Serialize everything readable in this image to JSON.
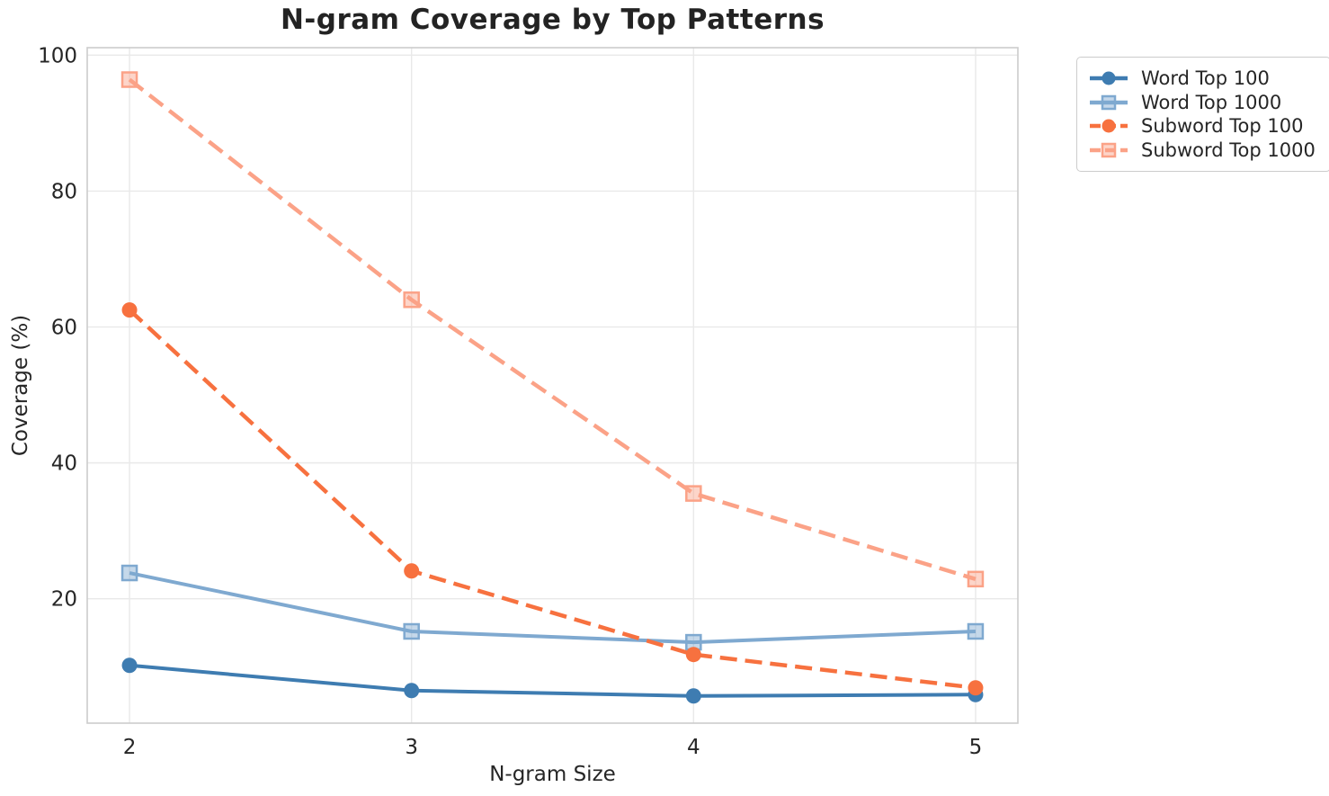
{
  "chart_data": {
    "type": "line",
    "title": "N-gram Coverage by Top Patterns",
    "xlabel": "N-gram Size",
    "ylabel": "Coverage (%)",
    "x": [
      2,
      3,
      4,
      5
    ],
    "x_tick_labels": [
      "2",
      "3",
      "4",
      "5"
    ],
    "y_ticks": [
      20,
      40,
      60,
      80,
      100
    ],
    "y_tick_labels": [
      "20",
      "40",
      "60",
      "80",
      "100"
    ],
    "xlim": [
      1.85,
      5.15
    ],
    "ylim": [
      1.7,
      101.1
    ],
    "grid": true,
    "legend_position": "outside-upper-right",
    "series": [
      {
        "name": "Word Top 100",
        "values": [
          10.2,
          6.5,
          5.7,
          5.9
        ],
        "color": "#3e7cb1",
        "line_style": "solid",
        "marker": "circle"
      },
      {
        "name": "Word Top 1000",
        "values": [
          23.8,
          15.2,
          13.6,
          15.2
        ],
        "color": "#7fa9d0",
        "line_style": "solid",
        "marker": "square"
      },
      {
        "name": "Subword Top 100",
        "values": [
          62.5,
          24.1,
          11.8,
          6.9
        ],
        "color": "#f7713f",
        "line_style": "dashed",
        "marker": "circle"
      },
      {
        "name": "Subword Top 1000",
        "values": [
          96.4,
          64.0,
          35.5,
          22.9
        ],
        "color": "#fba287",
        "line_style": "dashed",
        "marker": "square"
      }
    ]
  },
  "styles": {
    "background": "#ffffff",
    "grid_color": "#e9e9e9",
    "spine_color": "#cccccc",
    "text_color": "#262626",
    "title_color": "#232323"
  }
}
